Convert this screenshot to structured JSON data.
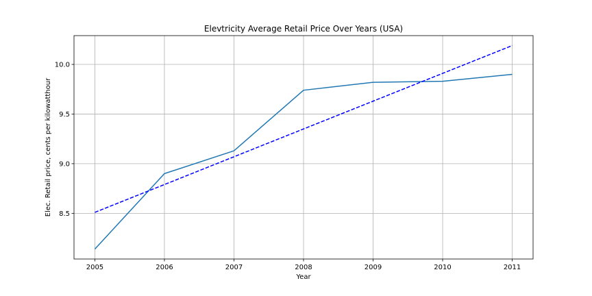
{
  "chart_data": {
    "type": "line",
    "title": "Elevtricity Average Retail Price Over Years (USA)",
    "xlabel": "Year",
    "ylabel": "Elec. Retail price, cents per kilowatthour",
    "x": [
      2005,
      2006,
      2007,
      2008,
      2009,
      2010,
      2011
    ],
    "x_tick_labels": [
      "2005",
      "2006",
      "2007",
      "2008",
      "2009",
      "2010",
      "2011"
    ],
    "y_ticks": [
      8.5,
      9.0,
      9.5,
      10.0
    ],
    "y_tick_labels": [
      "8.5",
      "9.0",
      "9.5",
      "10.0"
    ],
    "xlim": [
      2004.7,
      2011.3
    ],
    "ylim": [
      8.04,
      10.29
    ],
    "grid": true,
    "series": [
      {
        "style": "solid",
        "color": "#1f77b4",
        "values": [
          8.14,
          8.9,
          9.13,
          9.74,
          9.82,
          9.83,
          9.9
        ]
      },
      {
        "style": "dashed",
        "color": "#0000ff",
        "values": [
          8.51,
          8.79,
          9.07,
          9.35,
          9.63,
          9.91,
          10.19
        ]
      }
    ]
  }
}
